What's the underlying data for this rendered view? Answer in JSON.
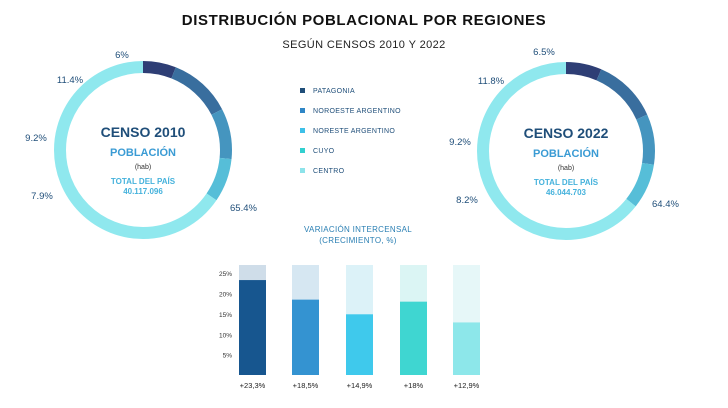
{
  "header": {
    "title": "DISTRIBUCIÓN POBLACIONAL POR REGIONES",
    "subtitle": "SEGÚN CENSOS  2010 Y 2022"
  },
  "colors": {
    "patagonia": "#2e3e75",
    "noroeste": "#396e9e",
    "noreste": "#4595bf",
    "cuyo": "#56bed8",
    "centro": "#8fe8ee",
    "dark_text": "#1f4e79",
    "light_text": "#3ba7d6"
  },
  "legend": [
    {
      "label": "PATAGONIA",
      "color": "#1f4e79"
    },
    {
      "label": "NOROESTE ARGENTINO",
      "color": "#2f86c6"
    },
    {
      "label": "NORESTE ARGENTINO",
      "color": "#3ec0e8"
    },
    {
      "label": "CUYO",
      "color": "#32d0cf"
    },
    {
      "label": "CENTRO",
      "color": "#8de3ea"
    }
  ],
  "census_2010": {
    "heading": "CENSO 2010",
    "population_label": "POBLACIÓN",
    "unit": "(hab)",
    "total_label": "TOTAL DEL PAÍS",
    "total_value": "40.117.096"
  },
  "census_2022": {
    "heading": "CENSO 2022",
    "population_label": "POBLACIÓN",
    "unit": "(hab)",
    "total_label": "TOTAL DEL PAÍS",
    "total_value": "46.044.703"
  },
  "variation": {
    "title_line1": "VARIACIÓN INTERCENSAL",
    "title_line2": "(CRECIMIENTO, %)"
  },
  "chart_data": [
    {
      "type": "pie",
      "title": "CENSO 2010",
      "categories": [
        "PATAGONIA",
        "NOROESTE ARGENTINO",
        "NORESTE ARGENTINO",
        "CUYO",
        "CENTRO"
      ],
      "values": [
        6,
        11.4,
        9.2,
        7.9,
        65.4
      ],
      "data_labels": [
        "6%",
        "11.4%",
        "9.2%",
        "7.9%",
        "65.4%"
      ]
    },
    {
      "type": "pie",
      "title": "CENSO 2022",
      "categories": [
        "PATAGONIA",
        "NOROESTE ARGENTINO",
        "NORESTE ARGENTINO",
        "CUYO",
        "CENTRO"
      ],
      "values": [
        6.5,
        11.8,
        9.2,
        8.2,
        64.4
      ],
      "data_labels": [
        "6.5%",
        "11.8%",
        "9.2%",
        "8.2%",
        "64.4%"
      ]
    },
    {
      "type": "bar",
      "title": "VARIACIÓN INTERCENSAL (CRECIMIENTO, %)",
      "categories": [
        "PATAGONIA",
        "NOROESTE ARGENTINO",
        "NORESTE ARGENTINO",
        "CUYO",
        "CENTRO"
      ],
      "values": [
        23.3,
        18.5,
        14.9,
        18,
        12.9
      ],
      "labels": [
        "+23,3%",
        "+18,5%",
        "+14,9%",
        "+18%",
        "+12,9%"
      ],
      "bar_colors": [
        "#17568f",
        "#3493d1",
        "#3fc9ec",
        "#3fd6d1",
        "#8de7ea"
      ],
      "track_colors": [
        "#cfdde9",
        "#d6e7f2",
        "#dcf2f8",
        "#dbf5f4",
        "#e6f7f8"
      ],
      "ylim": [
        0,
        27
      ],
      "yticks": [
        "5%",
        "10%",
        "15%",
        "20%",
        "25%"
      ],
      "ytick_values": [
        5,
        10,
        15,
        20,
        25
      ]
    }
  ]
}
